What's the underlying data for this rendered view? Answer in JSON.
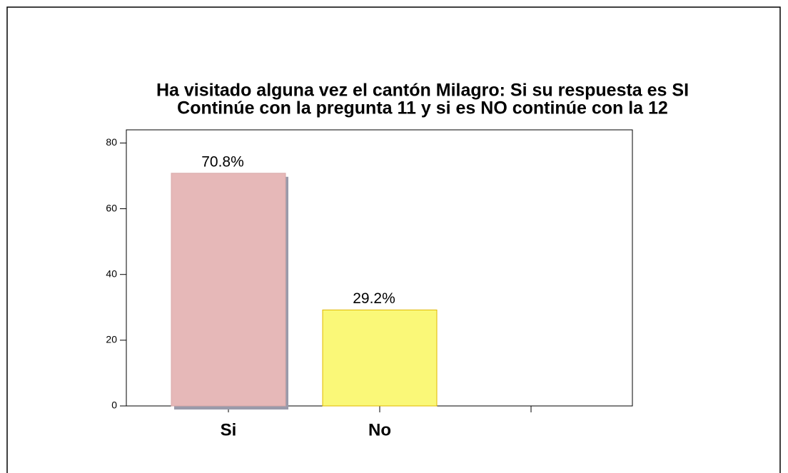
{
  "chart_data": {
    "type": "bar",
    "title": [
      "Ha visitado alguna vez el cantón Milagro: Si su respuesta es SI",
      "Continúe con la pregunta 11 y si es NO continúe con la 12"
    ],
    "categories": [
      "Si",
      "No",
      null
    ],
    "values": [
      70.8,
      29.2,
      null
    ],
    "value_labels": [
      "70.8%",
      "29.2%",
      null
    ],
    "colors": [
      "#e6b8b8",
      "#faf878",
      null
    ],
    "ylim": [
      0,
      84
    ],
    "yticks": [
      0,
      20,
      40,
      60,
      80
    ]
  }
}
